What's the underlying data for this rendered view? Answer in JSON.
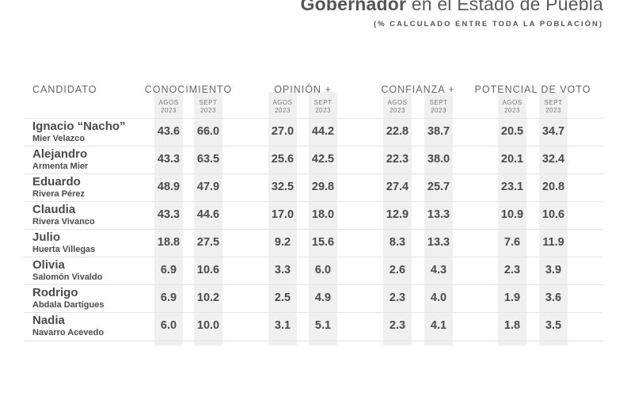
{
  "header": {
    "title_bold": "Gobernador",
    "title_rest": " en el Estado de Puebla",
    "subtitle": "(% CALCULADO ENTRE TODA LA POBLACIÓN)"
  },
  "chart_data": {
    "type": "table",
    "candidate_header": "CANDIDATO",
    "groups": [
      "CONOCIMIENTO",
      "OPINIÓN +",
      "CONFIANZA +",
      "POTENCIAL DE VOTO"
    ],
    "periods": [
      [
        "AGOS",
        "2023"
      ],
      [
        "SEPT",
        "2023"
      ]
    ],
    "rows": [
      {
        "first": "Ignacio “Nacho”",
        "last": "Mier Velazco",
        "values": [
          43.6,
          66.0,
          27.0,
          44.2,
          22.8,
          38.7,
          20.5,
          34.7
        ]
      },
      {
        "first": "Alejandro",
        "last": "Armenta Mier",
        "values": [
          43.3,
          63.5,
          25.6,
          42.5,
          22.3,
          38.0,
          20.1,
          32.4
        ]
      },
      {
        "first": "Eduardo",
        "last": "Rivera Pérez",
        "values": [
          48.9,
          47.9,
          32.5,
          29.8,
          27.4,
          25.7,
          23.1,
          20.8
        ]
      },
      {
        "first": "Claudia",
        "last": "Rivera Vivanco",
        "values": [
          43.3,
          44.6,
          17.0,
          18.0,
          12.9,
          13.3,
          10.9,
          10.6
        ]
      },
      {
        "first": "Julio",
        "last": "Huerta Villegas",
        "values": [
          18.8,
          27.5,
          9.2,
          15.6,
          8.3,
          13.3,
          7.6,
          11.9
        ]
      },
      {
        "first": "Olivia",
        "last": "Salomón Vivaldo",
        "values": [
          6.9,
          10.6,
          3.3,
          6.0,
          2.6,
          4.3,
          2.3,
          3.9
        ]
      },
      {
        "first": "Rodrigo",
        "last": "Abdala Dartigues",
        "values": [
          6.9,
          10.2,
          2.5,
          4.9,
          2.3,
          4.0,
          1.9,
          3.6
        ]
      },
      {
        "first": "Nadia",
        "last": "Navarro Acevedo",
        "values": [
          6.0,
          10.0,
          3.1,
          5.1,
          2.3,
          4.1,
          1.8,
          3.5
        ]
      }
    ]
  }
}
